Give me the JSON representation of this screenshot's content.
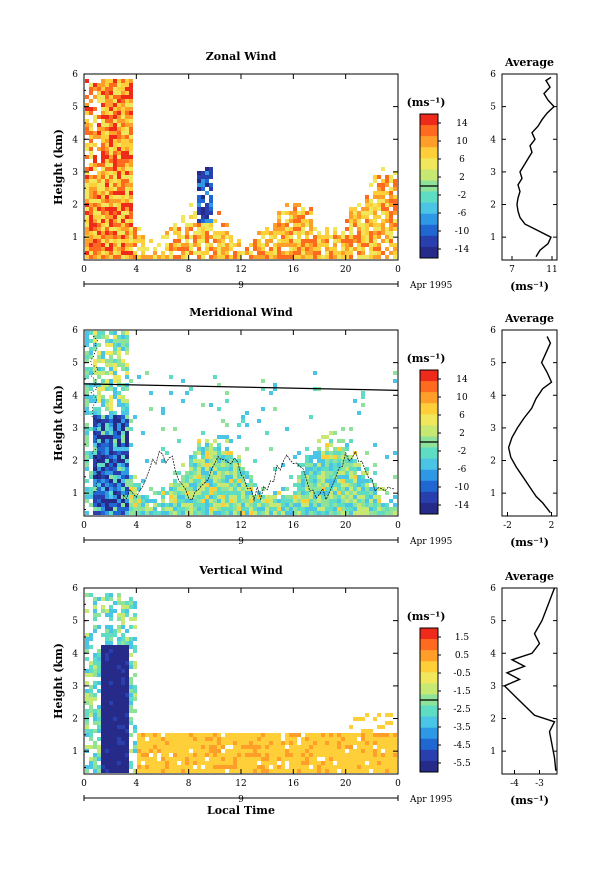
{
  "chart_data": [
    {
      "type": "heatmap",
      "title": "Zonal Wind",
      "ylabel": "Height (km)",
      "xlabel": "",
      "date_label": "Apr 1995",
      "day_label": "9",
      "x_ticks": [
        "0",
        "4",
        "8",
        "12",
        "16",
        "20",
        "0"
      ],
      "xlim": [
        0,
        24
      ],
      "y_ticks": [
        "1",
        "2",
        "3",
        "4",
        "5",
        "6"
      ],
      "ylim": [
        0.3,
        6
      ],
      "colorbar": {
        "unit": "(ms⁻¹)",
        "ticks": [
          "14",
          "10",
          "6",
          "2",
          "-2",
          "-6",
          "-10",
          "-14"
        ],
        "range": [
          -16,
          16
        ],
        "colors": [
          "#ee2a1a",
          "#ff6b1e",
          "#ff9f2a",
          "#ffcf3a",
          "#f1e75c",
          "#c7e873",
          "#8ee29a",
          "#5edcc4",
          "#4ac5e6",
          "#2f98e4",
          "#2167d1",
          "#2a3fae",
          "#262b8a"
        ]
      },
      "profile": {
        "title": "Average",
        "xlabel": "(ms⁻¹)",
        "x_ticks": [
          "7",
          "11"
        ],
        "xlim": [
          6,
          11.5
        ],
        "y_ticks": [
          "1",
          "2",
          "3",
          "4",
          "5",
          "6"
        ],
        "ylim": [
          0.3,
          6
        ],
        "values": [
          [
            9.4,
            0.4
          ],
          [
            9.8,
            0.6
          ],
          [
            10.6,
            0.8
          ],
          [
            10.9,
            1.0
          ],
          [
            9.6,
            1.2
          ],
          [
            8.3,
            1.4
          ],
          [
            7.8,
            1.6
          ],
          [
            7.6,
            1.8
          ],
          [
            7.5,
            2.0
          ],
          [
            7.6,
            2.2
          ],
          [
            7.8,
            2.4
          ],
          [
            7.6,
            2.6
          ],
          [
            8.0,
            2.8
          ],
          [
            7.8,
            3.0
          ],
          [
            8.2,
            3.2
          ],
          [
            8.6,
            3.4
          ],
          [
            9.0,
            3.6
          ],
          [
            8.8,
            3.8
          ],
          [
            9.3,
            4.0
          ],
          [
            9.0,
            4.2
          ],
          [
            9.6,
            4.4
          ],
          [
            10.0,
            4.6
          ],
          [
            10.5,
            4.8
          ],
          [
            11.2,
            5.0
          ],
          [
            10.6,
            5.2
          ],
          [
            10.2,
            5.4
          ],
          [
            10.8,
            5.6
          ],
          [
            10.4,
            5.8
          ],
          [
            10.9,
            5.9
          ]
        ]
      }
    },
    {
      "type": "heatmap",
      "title": "Meridional Wind",
      "ylabel": "Height (km)",
      "xlabel": "",
      "date_label": "Apr 1995",
      "day_label": "9",
      "x_ticks": [
        "0",
        "4",
        "8",
        "12",
        "16",
        "20",
        "0"
      ],
      "xlim": [
        0,
        24
      ],
      "y_ticks": [
        "1",
        "2",
        "3",
        "4",
        "5",
        "6"
      ],
      "ylim": [
        0.3,
        6
      ],
      "colorbar": {
        "unit": "(ms⁻¹)",
        "ticks": [
          "14",
          "10",
          "6",
          "2",
          "-2",
          "-6",
          "-10",
          "-14"
        ],
        "range": [
          -16,
          16
        ],
        "colors": [
          "#ee2a1a",
          "#ff6b1e",
          "#ff9f2a",
          "#ffcf3a",
          "#f1e75c",
          "#c7e873",
          "#8ee29a",
          "#5edcc4",
          "#4ac5e6",
          "#2f98e4",
          "#2167d1",
          "#2a3fae",
          "#262b8a"
        ]
      },
      "profile": {
        "title": "Average",
        "xlabel": "(ms⁻¹)",
        "x_ticks": [
          "-2",
          "2"
        ],
        "xlim": [
          -2.5,
          2.5
        ],
        "y_ticks": [
          "1",
          "2",
          "3",
          "4",
          "5",
          "6"
        ],
        "ylim": [
          0.3,
          6
        ],
        "values": [
          [
            1.9,
            0.4
          ],
          [
            1.2,
            0.7
          ],
          [
            0.6,
            0.9
          ],
          [
            0.0,
            1.2
          ],
          [
            -0.6,
            1.5
          ],
          [
            -1.2,
            1.8
          ],
          [
            -1.7,
            2.1
          ],
          [
            -1.9,
            2.4
          ],
          [
            -1.6,
            2.7
          ],
          [
            -1.1,
            3.0
          ],
          [
            -0.5,
            3.3
          ],
          [
            0.2,
            3.6
          ],
          [
            0.6,
            3.9
          ],
          [
            1.2,
            4.2
          ],
          [
            2.0,
            4.4
          ],
          [
            1.6,
            4.7
          ],
          [
            1.1,
            5.0
          ],
          [
            1.5,
            5.3
          ],
          [
            1.9,
            5.6
          ],
          [
            1.6,
            5.8
          ]
        ]
      }
    },
    {
      "type": "heatmap",
      "title": "Vertical Wind",
      "ylabel": "Height (km)",
      "xlabel": "Local Time",
      "date_label": "Apr 1995",
      "day_label": "9",
      "x_ticks": [
        "0",
        "4",
        "8",
        "12",
        "16",
        "20",
        "0"
      ],
      "xlim": [
        0,
        24
      ],
      "y_ticks": [
        "1",
        "2",
        "3",
        "4",
        "5",
        "6"
      ],
      "ylim": [
        0.3,
        6
      ],
      "colorbar": {
        "unit": "(ms⁻¹)",
        "ticks": [
          "1.5",
          "0.5",
          "-0.5",
          "-1.5",
          "-2.5",
          "-3.5",
          "-4.5",
          "-5.5"
        ],
        "range": [
          -6,
          2
        ],
        "colors": [
          "#ee2a1a",
          "#ff6b1e",
          "#ff9f2a",
          "#ffcf3a",
          "#f1e75c",
          "#c7e873",
          "#8ee29a",
          "#5edcc4",
          "#4ac5e6",
          "#2f98e4",
          "#2167d1",
          "#2a3fae",
          "#262b8a"
        ]
      },
      "profile": {
        "title": "Average",
        "xlabel": "(ms⁻¹)",
        "x_ticks": [
          "-4",
          "-3"
        ],
        "xlim": [
          -4.5,
          -2.3
        ],
        "y_ticks": [
          "1",
          "2",
          "3",
          "4",
          "5",
          "6"
        ],
        "ylim": [
          0.3,
          6
        ],
        "values": [
          [
            -2.35,
            0.4
          ],
          [
            -2.4,
            0.8
          ],
          [
            -2.5,
            1.2
          ],
          [
            -2.6,
            1.6
          ],
          [
            -2.4,
            1.9
          ],
          [
            -3.2,
            2.1
          ],
          [
            -3.6,
            2.4
          ],
          [
            -4.0,
            2.7
          ],
          [
            -4.4,
            3.0
          ],
          [
            -3.8,
            3.2
          ],
          [
            -4.3,
            3.4
          ],
          [
            -3.6,
            3.6
          ],
          [
            -4.1,
            3.8
          ],
          [
            -3.3,
            4.0
          ],
          [
            -3.0,
            4.3
          ],
          [
            -3.2,
            4.6
          ],
          [
            -2.9,
            5.0
          ],
          [
            -2.7,
            5.4
          ],
          [
            -2.5,
            5.8
          ],
          [
            -2.4,
            6.0
          ]
        ]
      }
    }
  ]
}
